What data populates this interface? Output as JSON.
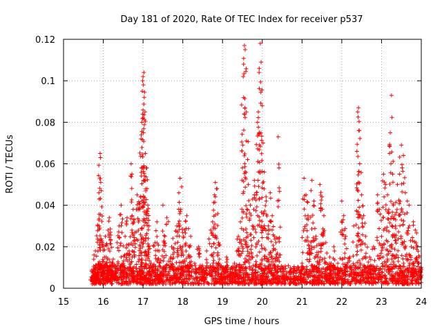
{
  "chart_data": {
    "type": "scatter",
    "title": "Day 181 of 2020, Rate Of TEC Index for receiver p537",
    "xlabel": "GPS time / hours",
    "ylabel": "ROTI / TECUs",
    "xlim": [
      15,
      24
    ],
    "ylim": [
      0,
      0.12
    ],
    "x_ticks": [
      15,
      16,
      17,
      18,
      19,
      20,
      21,
      22,
      23,
      24
    ],
    "x_tick_labels": [
      "15",
      "16",
      "17",
      "18",
      "19",
      "20",
      "21",
      "22",
      "23",
      "24"
    ],
    "y_ticks": [
      0,
      0.02,
      0.04,
      0.06,
      0.08,
      0.1,
      0.12
    ],
    "y_tick_labels": [
      "0",
      "0.02",
      "0.04",
      "0.06",
      "0.08",
      "0.1",
      "0.12"
    ],
    "grid": true,
    "marker": "+",
    "marker_color": "#ff0000",
    "series": [
      {
        "name": "ROTI",
        "points": [
          [
            15.72,
            0.004
          ],
          [
            15.75,
            0.009
          ],
          [
            15.78,
            0.002
          ],
          [
            15.8,
            0.018
          ],
          [
            15.83,
            0.006
          ],
          [
            15.86,
            0.03
          ],
          [
            15.88,
            0.012
          ],
          [
            15.9,
            0.043
          ],
          [
            15.92,
            0.065
          ],
          [
            15.93,
            0.063
          ],
          [
            15.95,
            0.047
          ],
          [
            15.97,
            0.022
          ],
          [
            16.0,
            0.008
          ],
          [
            16.03,
            0.015
          ],
          [
            16.05,
            0.025
          ],
          [
            16.08,
            0.011
          ],
          [
            16.1,
            0.005
          ],
          [
            16.13,
            0.019
          ],
          [
            16.15,
            0.034
          ],
          [
            16.18,
            0.027
          ],
          [
            16.2,
            0.009
          ],
          [
            16.25,
            0.014
          ],
          [
            16.3,
            0.006
          ],
          [
            16.35,
            0.022
          ],
          [
            16.4,
            0.03
          ],
          [
            16.45,
            0.04
          ],
          [
            16.5,
            0.012
          ],
          [
            16.55,
            0.025
          ],
          [
            16.6,
            0.034
          ],
          [
            16.65,
            0.018
          ],
          [
            16.7,
            0.06
          ],
          [
            16.72,
            0.055
          ],
          [
            16.75,
            0.038
          ],
          [
            16.8,
            0.027
          ],
          [
            16.85,
            0.045
          ],
          [
            16.9,
            0.041
          ],
          [
            16.93,
            0.02
          ],
          [
            16.95,
            0.072
          ],
          [
            16.97,
            0.08
          ],
          [
            16.98,
            0.095
          ],
          [
            16.99,
            0.1
          ],
          [
            17.0,
            0.102
          ],
          [
            17.01,
            0.098
          ],
          [
            17.02,
            0.104
          ],
          [
            17.03,
            0.092
          ],
          [
            17.05,
            0.085
          ],
          [
            17.06,
            0.065
          ],
          [
            17.08,
            0.058
          ],
          [
            17.1,
            0.048
          ],
          [
            17.12,
            0.04
          ],
          [
            17.15,
            0.03
          ],
          [
            17.2,
            0.012
          ],
          [
            17.3,
            0.022
          ],
          [
            17.35,
            0.032
          ],
          [
            17.4,
            0.018
          ],
          [
            17.45,
            0.008
          ],
          [
            17.5,
            0.04
          ],
          [
            17.55,
            0.025
          ],
          [
            17.6,
            0.034
          ],
          [
            17.7,
            0.015
          ],
          [
            17.75,
            0.024
          ],
          [
            17.8,
            0.01
          ],
          [
            17.85,
            0.03
          ],
          [
            17.9,
            0.046
          ],
          [
            17.93,
            0.053
          ],
          [
            17.95,
            0.038
          ],
          [
            18.0,
            0.02
          ],
          [
            18.05,
            0.028
          ],
          [
            18.1,
            0.035
          ],
          [
            18.15,
            0.016
          ],
          [
            18.2,
            0.025
          ],
          [
            18.3,
            0.012
          ],
          [
            18.4,
            0.02
          ],
          [
            18.5,
            0.008
          ],
          [
            18.6,
            0.018
          ],
          [
            18.7,
            0.028
          ],
          [
            18.75,
            0.032
          ],
          [
            18.8,
            0.045
          ],
          [
            18.82,
            0.051
          ],
          [
            18.85,
            0.048
          ],
          [
            18.9,
            0.022
          ],
          [
            19.0,
            0.01
          ],
          [
            19.1,
            0.015
          ],
          [
            19.2,
            0.008
          ],
          [
            19.3,
            0.012
          ],
          [
            19.4,
            0.025
          ],
          [
            19.45,
            0.032
          ],
          [
            19.5,
            0.058
          ],
          [
            19.52,
            0.102
          ],
          [
            19.53,
            0.108
          ],
          [
            19.55,
            0.117
          ],
          [
            19.57,
            0.115
          ],
          [
            19.6,
            0.085
          ],
          [
            19.63,
            0.062
          ],
          [
            19.65,
            0.05
          ],
          [
            19.7,
            0.04
          ],
          [
            19.75,
            0.03
          ],
          [
            19.8,
            0.052
          ],
          [
            19.85,
            0.045
          ],
          [
            19.88,
            0.08
          ],
          [
            19.9,
            0.085
          ],
          [
            19.92,
            0.104
          ],
          [
            19.95,
            0.118
          ],
          [
            19.97,
            0.109
          ],
          [
            20.0,
            0.088
          ],
          [
            20.02,
            0.07
          ],
          [
            20.05,
            0.056
          ],
          [
            20.1,
            0.042
          ],
          [
            20.15,
            0.03
          ],
          [
            20.2,
            0.046
          ],
          [
            20.25,
            0.035
          ],
          [
            20.3,
            0.025
          ],
          [
            20.35,
            0.015
          ],
          [
            20.4,
            0.073
          ],
          [
            20.42,
            0.058
          ],
          [
            20.5,
            0.01
          ],
          [
            20.6,
            0.006
          ],
          [
            20.8,
            0.005
          ],
          [
            21.0,
            0.012
          ],
          [
            21.05,
            0.053
          ],
          [
            21.1,
            0.045
          ],
          [
            21.15,
            0.035
          ],
          [
            21.2,
            0.02
          ],
          [
            21.25,
            0.052
          ],
          [
            21.3,
            0.042
          ],
          [
            21.35,
            0.025
          ],
          [
            21.4,
            0.015
          ],
          [
            21.45,
            0.05
          ],
          [
            21.5,
            0.044
          ],
          [
            21.55,
            0.035
          ],
          [
            21.6,
            0.022
          ],
          [
            21.7,
            0.015
          ],
          [
            21.8,
            0.02
          ],
          [
            21.9,
            0.012
          ],
          [
            22.0,
            0.042
          ],
          [
            22.05,
            0.035
          ],
          [
            22.1,
            0.025
          ],
          [
            22.2,
            0.015
          ],
          [
            22.3,
            0.03
          ],
          [
            22.38,
            0.066
          ],
          [
            22.4,
            0.085
          ],
          [
            22.42,
            0.087
          ],
          [
            22.43,
            0.076
          ],
          [
            22.45,
            0.06
          ],
          [
            22.5,
            0.045
          ],
          [
            22.55,
            0.035
          ],
          [
            22.6,
            0.025
          ],
          [
            22.7,
            0.015
          ],
          [
            22.8,
            0.02
          ],
          [
            22.9,
            0.045
          ],
          [
            22.95,
            0.038
          ],
          [
            23.0,
            0.025
          ],
          [
            23.05,
            0.055
          ],
          [
            23.1,
            0.05
          ],
          [
            23.15,
            0.045
          ],
          [
            23.2,
            0.065
          ],
          [
            23.22,
            0.075
          ],
          [
            23.25,
            0.093
          ],
          [
            23.28,
            0.055
          ],
          [
            23.3,
            0.04
          ],
          [
            23.35,
            0.03
          ],
          [
            23.4,
            0.05
          ],
          [
            23.45,
            0.055
          ],
          [
            23.5,
            0.069
          ],
          [
            23.52,
            0.058
          ],
          [
            23.55,
            0.064
          ],
          [
            23.6,
            0.046
          ],
          [
            23.65,
            0.042
          ],
          [
            23.7,
            0.03
          ],
          [
            23.75,
            0.02
          ],
          [
            23.8,
            0.032
          ],
          [
            23.85,
            0.028
          ],
          [
            23.9,
            0.02
          ],
          [
            23.95,
            0.015
          ],
          [
            24.0,
            0.01
          ]
        ],
        "baseline_band": {
          "x_range": [
            15.7,
            24.0
          ],
          "y_range": [
            0.002,
            0.011
          ],
          "note": "dense near-zero cluster of points"
        }
      }
    ]
  }
}
